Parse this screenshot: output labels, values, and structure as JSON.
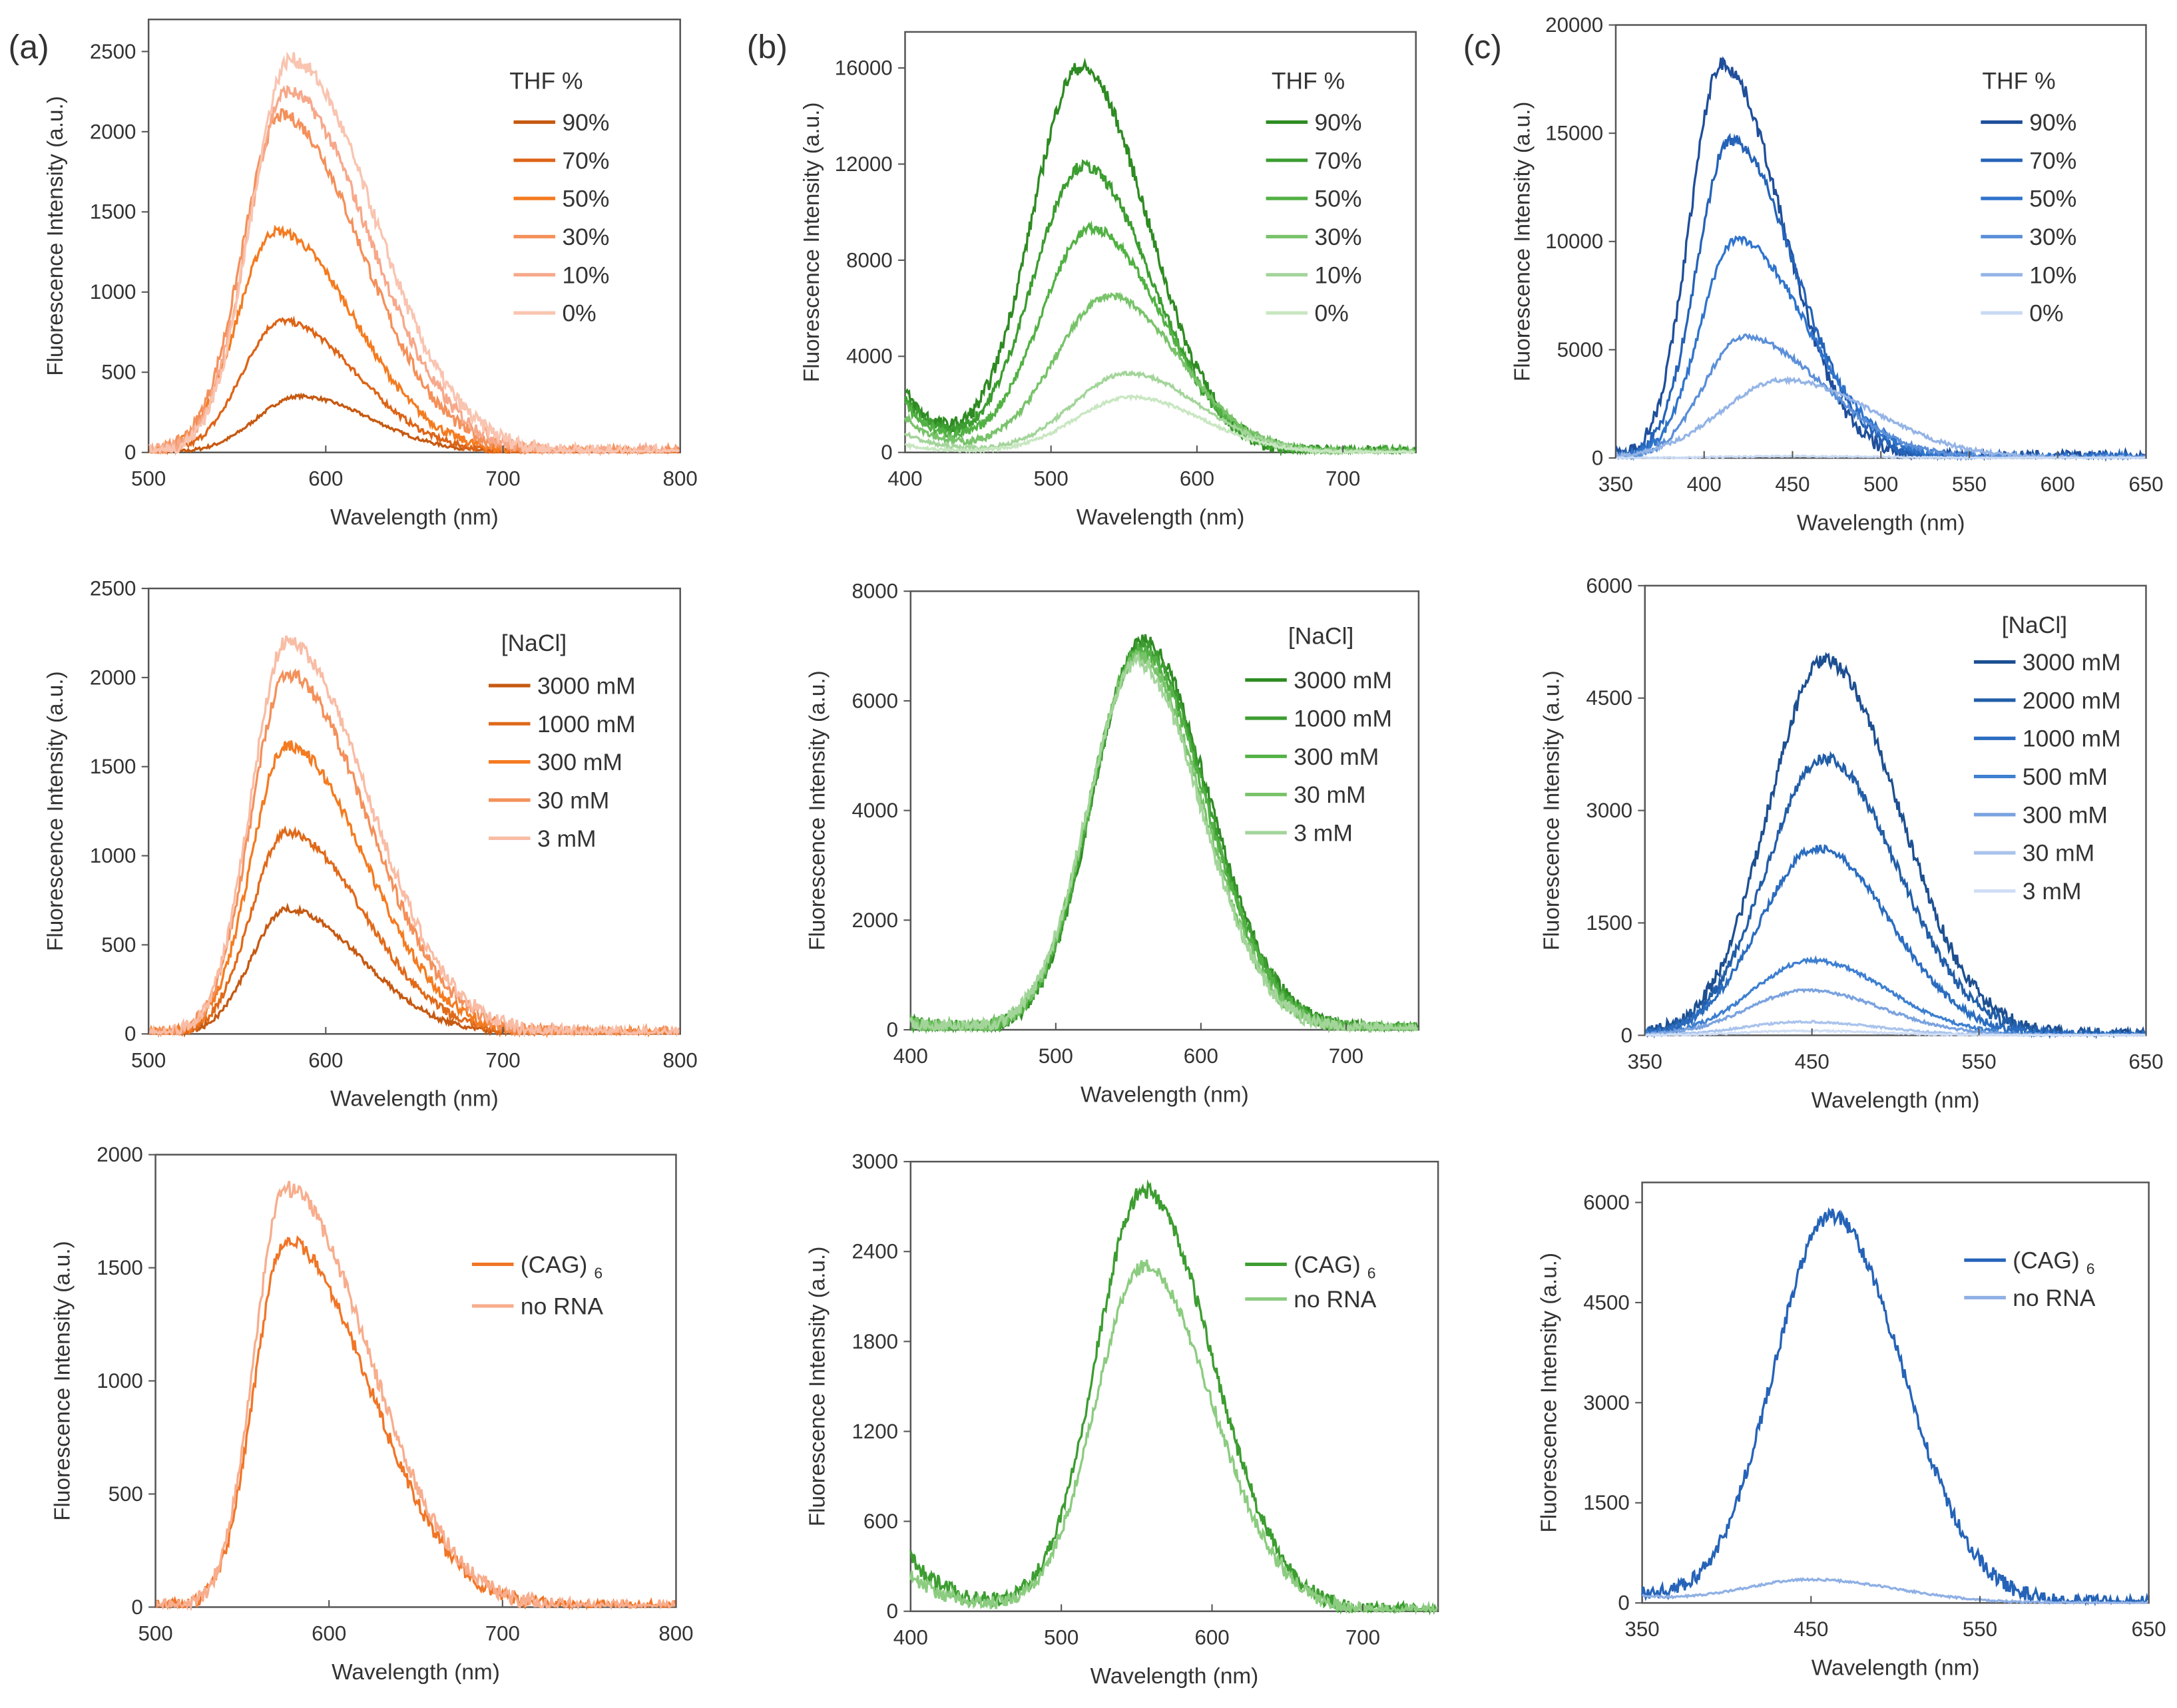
{
  "panel_labels": [
    "(a)",
    "(b)",
    "(c)"
  ],
  "chart_data": [
    {
      "id": "a1",
      "type": "line",
      "xlabel": "Wavelength (nm)",
      "ylabel": "Fluorescence Intensity (a.u.)",
      "xlim": [
        500,
        800
      ],
      "ylim": [
        0,
        2700
      ],
      "xticks": [
        500,
        600,
        700,
        800
      ],
      "yticks": [
        0,
        500,
        1000,
        1500,
        2000,
        2500
      ],
      "legend_title": "THF %",
      "legend_placement": "top-right",
      "series": [
        {
          "name": "90%",
          "color": "#c65911",
          "peak_nm": 585,
          "peak": 350,
          "sigma_left": 24,
          "sigma_right": 40,
          "base": 0
        },
        {
          "name": "70%",
          "color": "#dd6417",
          "peak_nm": 575,
          "peak": 820,
          "sigma_left": 22,
          "sigma_right": 42,
          "base": 0
        },
        {
          "name": "50%",
          "color": "#f47b20",
          "peak_nm": 572,
          "peak": 1380,
          "sigma_left": 22,
          "sigma_right": 44,
          "base": 0
        },
        {
          "name": "30%",
          "color": "#f4905a",
          "peak_nm": 575,
          "peak": 2100,
          "sigma_left": 22,
          "sigma_right": 45,
          "base": 0
        },
        {
          "name": "10%",
          "color": "#f7a88a",
          "peak_nm": 578,
          "peak": 2250,
          "sigma_left": 22,
          "sigma_right": 46,
          "base": 0
        },
        {
          "name": "0%",
          "color": "#f9c4b0",
          "peak_nm": 580,
          "peak": 2450,
          "sigma_left": 22,
          "sigma_right": 47,
          "base": 0
        }
      ]
    },
    {
      "id": "b1",
      "type": "line",
      "xlabel": "Wavelength (nm)",
      "ylabel": "Fluorescence Intensity (a.u.)",
      "xlim": [
        400,
        750
      ],
      "ylim": [
        0,
        17500
      ],
      "xticks": [
        400,
        500,
        600,
        700
      ],
      "yticks": [
        0,
        4000,
        8000,
        12000,
        16000
      ],
      "legend_title": "THF %",
      "legend_placement": "top-right",
      "series": [
        {
          "name": "90%",
          "color": "#2e8b22",
          "peak_nm": 520,
          "peak": 16000,
          "sigma_left": 33,
          "sigma_right": 46,
          "base": 2500
        },
        {
          "name": "70%",
          "color": "#3c9d30",
          "peak_nm": 522,
          "peak": 11900,
          "sigma_left": 34,
          "sigma_right": 47,
          "base": 2200
        },
        {
          "name": "50%",
          "color": "#52b144",
          "peak_nm": 528,
          "peak": 9300,
          "sigma_left": 35,
          "sigma_right": 48,
          "base": 2000
        },
        {
          "name": "30%",
          "color": "#78c36a",
          "peak_nm": 540,
          "peak": 6500,
          "sigma_left": 37,
          "sigma_right": 48,
          "base": 1500
        },
        {
          "name": "10%",
          "color": "#a3d59a",
          "peak_nm": 553,
          "peak": 3300,
          "sigma_left": 38,
          "sigma_right": 48,
          "base": 800
        },
        {
          "name": "0%",
          "color": "#c8e7c1",
          "peak_nm": 555,
          "peak": 2300,
          "sigma_left": 38,
          "sigma_right": 48,
          "base": 300
        }
      ]
    },
    {
      "id": "c1",
      "type": "line",
      "xlabel": "Wavelength (nm)",
      "ylabel": "Fluorescence Intensity (a.u.)",
      "xlim": [
        350,
        650
      ],
      "ylim": [
        0,
        20000
      ],
      "xticks": [
        350,
        400,
        450,
        500,
        550,
        600,
        650
      ],
      "yticks": [
        0,
        5000,
        10000,
        15000,
        20000
      ],
      "legend_title": "THF %",
      "legend_placement": "top-right",
      "series": [
        {
          "name": "90%",
          "color": "#1f4e9a",
          "peak_nm": 410,
          "peak": 18200,
          "sigma_left": 18,
          "sigma_right": 34,
          "base": 0
        },
        {
          "name": "70%",
          "color": "#2563b8",
          "peak_nm": 415,
          "peak": 14700,
          "sigma_left": 19,
          "sigma_right": 36,
          "base": 0
        },
        {
          "name": "50%",
          "color": "#2f74cc",
          "peak_nm": 418,
          "peak": 10100,
          "sigma_left": 20,
          "sigma_right": 40,
          "base": 0
        },
        {
          "name": "30%",
          "color": "#5b8fd8",
          "peak_nm": 422,
          "peak": 5600,
          "sigma_left": 22,
          "sigma_right": 45,
          "base": 0
        },
        {
          "name": "10%",
          "color": "#94b4e6",
          "peak_nm": 445,
          "peak": 3600,
          "sigma_left": 35,
          "sigma_right": 50,
          "base": 0
        },
        {
          "name": "0%",
          "color": "#c8d9f3",
          "peak_nm": 450,
          "peak": 80,
          "sigma_left": 40,
          "sigma_right": 50,
          "base": 0
        }
      ]
    },
    {
      "id": "a2",
      "type": "line",
      "xlabel": "Wavelength (nm)",
      "ylabel": "Fluorescence Intensity (a.u.)",
      "xlim": [
        500,
        800
      ],
      "ylim": [
        0,
        2500
      ],
      "xticks": [
        500,
        600,
        700,
        800
      ],
      "yticks": [
        0,
        500,
        1000,
        1500,
        2000,
        2500
      ],
      "legend_title": "[NaCl]",
      "legend_placement": "top-right",
      "series": [
        {
          "name": "3000 mM",
          "color": "#c65911",
          "peak_nm": 578,
          "peak": 700,
          "sigma_left": 20,
          "sigma_right": 42,
          "base": 0
        },
        {
          "name": "1000 mM",
          "color": "#e06a1a",
          "peak_nm": 578,
          "peak": 1130,
          "sigma_left": 20,
          "sigma_right": 43,
          "base": 0
        },
        {
          "name": "300 mM",
          "color": "#f47b20",
          "peak_nm": 578,
          "peak": 1620,
          "sigma_left": 20,
          "sigma_right": 44,
          "base": 0
        },
        {
          "name": "30 mM",
          "color": "#f4905a",
          "peak_nm": 578,
          "peak": 2020,
          "sigma_left": 20,
          "sigma_right": 45,
          "base": 0
        },
        {
          "name": "3 mM",
          "color": "#f9bca5",
          "peak_nm": 578,
          "peak": 2200,
          "sigma_left": 20,
          "sigma_right": 46,
          "base": 0
        }
      ]
    },
    {
      "id": "b2",
      "type": "line",
      "xlabel": "Wavelength (nm)",
      "ylabel": "Fluorescence Intensity (a.u.)",
      "xlim": [
        400,
        750
      ],
      "ylim": [
        0,
        8000
      ],
      "xticks": [
        400,
        500,
        600,
        700
      ],
      "yticks": [
        0,
        2000,
        4000,
        6000,
        8000
      ],
      "legend_title": "[NaCl]",
      "legend_placement": "top-right",
      "series": [
        {
          "name": "3000 mM",
          "color": "#2e8b22",
          "peak_nm": 560,
          "peak": 7100,
          "sigma_left": 34,
          "sigma_right": 45,
          "base": 100
        },
        {
          "name": "1000 mM",
          "color": "#3c9d30",
          "peak_nm": 559,
          "peak": 7000,
          "sigma_left": 34,
          "sigma_right": 45,
          "base": 100
        },
        {
          "name": "300 mM",
          "color": "#52b144",
          "peak_nm": 558,
          "peak": 6900,
          "sigma_left": 34,
          "sigma_right": 45,
          "base": 100
        },
        {
          "name": "30 mM",
          "color": "#78c36a",
          "peak_nm": 557,
          "peak": 6800,
          "sigma_left": 34,
          "sigma_right": 44,
          "base": 100
        },
        {
          "name": "3 mM",
          "color": "#a3d59a",
          "peak_nm": 556,
          "peak": 6700,
          "sigma_left": 34,
          "sigma_right": 44,
          "base": 100
        }
      ]
    },
    {
      "id": "c2",
      "type": "line",
      "xlabel": "Wavelength (nm)",
      "ylabel": "Fluorescence Intensity (a.u.)",
      "xlim": [
        350,
        650
      ],
      "ylim": [
        0,
        6000
      ],
      "xticks": [
        350,
        450,
        550,
        650
      ],
      "yticks": [
        0,
        1500,
        3000,
        4500,
        6000
      ],
      "legend_title": "[NaCl]",
      "legend_placement": "top-right",
      "series": [
        {
          "name": "3000 mM",
          "color": "#1d4f91",
          "peak_nm": 458,
          "peak": 5000,
          "sigma_left": 34,
          "sigma_right": 44,
          "base": 0
        },
        {
          "name": "2000 mM",
          "color": "#225ea8",
          "peak_nm": 457,
          "peak": 3700,
          "sigma_left": 34,
          "sigma_right": 44,
          "base": 0
        },
        {
          "name": "1000 mM",
          "color": "#2a6cc0",
          "peak_nm": 453,
          "peak": 2500,
          "sigma_left": 34,
          "sigma_right": 44,
          "base": 0
        },
        {
          "name": "500 mM",
          "color": "#3d7fd0",
          "peak_nm": 450,
          "peak": 1000,
          "sigma_left": 35,
          "sigma_right": 45,
          "base": 0
        },
        {
          "name": "300 mM",
          "color": "#7aa2df",
          "peak_nm": 447,
          "peak": 600,
          "sigma_left": 35,
          "sigma_right": 45,
          "base": 0
        },
        {
          "name": "30 mM",
          "color": "#a9c3ec",
          "peak_nm": 445,
          "peak": 180,
          "sigma_left": 35,
          "sigma_right": 45,
          "base": 0
        },
        {
          "name": "3 mM",
          "color": "#d0def5",
          "peak_nm": 445,
          "peak": 60,
          "sigma_left": 35,
          "sigma_right": 45,
          "base": 0
        }
      ]
    },
    {
      "id": "a3",
      "type": "line",
      "xlabel": "Wavelength (nm)",
      "ylabel": "Fluorescence Intensity (a.u.)",
      "xlim": [
        500,
        800
      ],
      "ylim": [
        0,
        2000
      ],
      "xticks": [
        500,
        600,
        700,
        800
      ],
      "yticks": [
        0,
        500,
        1000,
        1500,
        2000
      ],
      "legend_title": "",
      "legend_placement": "right",
      "series": [
        {
          "name": "(CAG)",
          "sub": "6",
          "color": "#f07526",
          "peak_nm": 575,
          "peak": 1620,
          "sigma_left": 18,
          "sigma_right": 48,
          "base": 0
        },
        {
          "name": "no RNA",
          "sub": "",
          "color": "#f8ad8d",
          "peak_nm": 575,
          "peak": 1850,
          "sigma_left": 18,
          "sigma_right": 48,
          "base": 0
        }
      ]
    },
    {
      "id": "b3",
      "type": "line",
      "xlabel": "Wavelength (nm)",
      "ylabel": "Fluorescence Intensity (a.u.)",
      "xlim": [
        400,
        750
      ],
      "ylim": [
        0,
        3000
      ],
      "xticks": [
        400,
        500,
        600,
        700
      ],
      "yticks": [
        0,
        600,
        1200,
        1800,
        2400,
        3000
      ],
      "legend_title": "",
      "legend_placement": "right",
      "series": [
        {
          "name": "(CAG)",
          "sub": "6",
          "color": "#3c9d30",
          "peak_nm": 555,
          "peak": 2800,
          "sigma_left": 32,
          "sigma_right": 45,
          "base": 300
        },
        {
          "name": "no RNA",
          "sub": "",
          "color": "#8ccc80",
          "peak_nm": 555,
          "peak": 2300,
          "sigma_left": 32,
          "sigma_right": 45,
          "base": 200
        }
      ]
    },
    {
      "id": "c3",
      "type": "line",
      "xlabel": "Wavelength (nm)",
      "ylabel": "Fluorescence Intensity (a.u.)",
      "xlim": [
        350,
        650
      ],
      "ylim": [
        0,
        6300
      ],
      "xticks": [
        350,
        450,
        550,
        650
      ],
      "yticks": [
        0,
        1500,
        3000,
        4500,
        6000
      ],
      "legend_title": "",
      "legend_placement": "right",
      "series": [
        {
          "name": "(CAG)",
          "sub": "6",
          "color": "#2563b8",
          "peak_nm": 462,
          "peak": 5800,
          "sigma_left": 34,
          "sigma_right": 42,
          "base": 150
        },
        {
          "name": "no RNA",
          "sub": "",
          "color": "#8fb0e5",
          "peak_nm": 450,
          "peak": 350,
          "sigma_left": 40,
          "sigma_right": 50,
          "base": 100
        }
      ]
    }
  ]
}
